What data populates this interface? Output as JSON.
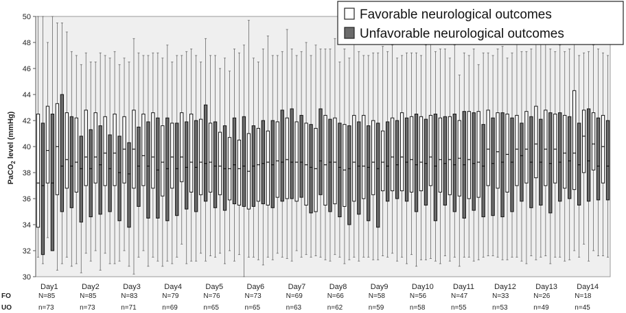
{
  "chart_data": {
    "type": "boxplot",
    "ylabel_main": "PaCO",
    "ylabel_sub": "2",
    "ylabel_tail": " level (mmHg)",
    "ylim": [
      30,
      50
    ],
    "yticks": [
      30,
      32,
      34,
      36,
      38,
      40,
      42,
      44,
      46,
      48,
      50
    ],
    "grid": false,
    "legend_position": "top-right",
    "legend": [
      {
        "name": "Favorable neurological outcomes",
        "color": "#ffffff"
      },
      {
        "name": "Unfavorable neurological outcomes",
        "color": "#6b6b6b"
      }
    ],
    "categories": [
      "Day1",
      "Day2",
      "Day3",
      "Day4",
      "Day5",
      "Day6",
      "Day7",
      "Day8",
      "Day9",
      "Day10",
      "Day11",
      "Day12",
      "Day13",
      "Day14"
    ],
    "row_labels": {
      "fo": "FO",
      "uo": "UO"
    },
    "fo_counts": [
      "N=85",
      "N=85",
      "N=83",
      "N=79",
      "N=76",
      "N=73",
      "N=69",
      "N=66",
      "N=58",
      "N=56",
      "N=47",
      "N=33",
      "N=26",
      "N=18"
    ],
    "uo_counts": [
      "n=73",
      "n=73",
      "n=71",
      "n=69",
      "n=65",
      "n=65",
      "n=63",
      "n=62",
      "n=59",
      "n=58",
      "n=55",
      "n=53",
      "n=49",
      "n=45"
    ],
    "series": [
      {
        "name": "Favorable neurological outcomes",
        "color": "#ffffff",
        "boxes": [
          [
            31.5,
            33.8,
            37.2,
            42.5,
            50
          ],
          [
            33,
            37.2,
            39.7,
            43.1,
            48
          ],
          [
            30.5,
            36.3,
            40,
            43.3,
            49.5
          ],
          [
            31.5,
            36.8,
            39,
            42.6,
            48.8
          ],
          [
            31,
            36.5,
            38.8,
            42.2,
            47
          ],
          [
            31.8,
            37,
            39.2,
            42.8,
            47.2
          ],
          [
            32,
            37.2,
            39.2,
            42.6,
            46.5
          ],
          [
            31.8,
            37,
            39.5,
            42.3,
            47
          ],
          [
            31,
            37,
            39.5,
            42.5,
            47.3
          ],
          [
            32,
            37.2,
            39.8,
            42.3,
            46.8
          ],
          [
            30.2,
            36.8,
            39.8,
            42.8,
            48.3
          ],
          [
            32,
            37,
            39.3,
            42.5,
            47
          ],
          [
            31.5,
            36.8,
            39.2,
            42.6,
            47.2
          ],
          [
            30.8,
            36.2,
            38.8,
            41.6,
            46.8
          ],
          [
            31,
            36.8,
            39.2,
            41.8,
            46.5
          ],
          [
            32.5,
            37.3,
            39.2,
            42.6,
            47
          ],
          [
            31.2,
            36.5,
            38.8,
            42.5,
            47.5
          ],
          [
            31.8,
            36.3,
            38.8,
            42.1,
            46.5
          ],
          [
            31.6,
            36.5,
            38.8,
            41.8,
            47
          ],
          [
            31.8,
            36.3,
            38.5,
            41.1,
            46
          ],
          [
            32,
            35.9,
            38.3,
            40.7,
            45.8
          ],
          [
            31.7,
            35.5,
            38.3,
            40.5,
            47.2
          ],
          [
            31.5,
            35.2,
            38.1,
            41,
            49.7
          ],
          [
            31.3,
            35.8,
            38.6,
            41.4,
            46.5
          ],
          [
            31.5,
            35.5,
            38.8,
            41.2,
            48.5
          ],
          [
            31.8,
            36.1,
            38.9,
            41.9,
            47
          ],
          [
            31.4,
            36,
            39,
            42.2,
            49
          ],
          [
            32,
            35.8,
            38.8,
            41.9,
            47
          ],
          [
            31.7,
            35.5,
            38.6,
            41.8,
            48
          ],
          [
            31.6,
            35,
            38.3,
            41.4,
            47.8
          ],
          [
            31.3,
            35.5,
            38.6,
            42.4,
            47.5
          ],
          [
            31.7,
            35.6,
            38.8,
            42.2,
            48.3
          ],
          [
            31,
            35.4,
            38.2,
            41.7,
            47.5
          ],
          [
            31.5,
            35.8,
            38.8,
            42.4,
            48
          ],
          [
            31.5,
            36,
            38.5,
            42.4,
            47
          ],
          [
            31.3,
            36.3,
            38.8,
            42,
            47.2
          ],
          [
            31.6,
            36.6,
            38.8,
            41.2,
            47.7
          ],
          [
            31.8,
            36.6,
            39.2,
            42.2,
            47.8
          ],
          [
            31.5,
            36.6,
            39.2,
            42.6,
            47
          ],
          [
            31.7,
            36.5,
            39,
            42.3,
            47.2
          ],
          [
            31.3,
            36.6,
            38.8,
            42.3,
            47
          ],
          [
            31.4,
            37,
            39.2,
            42.4,
            48.5
          ],
          [
            31,
            36.5,
            39,
            42.2,
            47.5
          ],
          [
            31.2,
            36.3,
            39,
            42.3,
            46.8
          ],
          [
            30.8,
            36.2,
            39.1,
            42,
            45.5
          ],
          [
            31.5,
            36,
            39,
            42.7,
            47
          ],
          [
            31.3,
            36.1,
            38.8,
            42.7,
            46.3
          ],
          [
            31.6,
            37,
            39.8,
            42.8,
            47.2
          ],
          [
            31.5,
            36.8,
            39.6,
            42.6,
            47.5
          ],
          [
            31.3,
            36.5,
            39.4,
            42.5,
            46.8
          ],
          [
            31.5,
            37,
            39.8,
            42.4,
            48
          ],
          [
            31,
            37.2,
            39.8,
            42.7,
            47.3
          ],
          [
            31.3,
            37.6,
            40.2,
            43.1,
            48.2
          ],
          [
            31.6,
            37,
            39.8,
            42.8,
            48.2
          ],
          [
            31.5,
            37.2,
            39.8,
            42.5,
            47.3
          ],
          [
            31.2,
            36.8,
            39.5,
            42.4,
            47.3
          ],
          [
            32,
            36.7,
            39.5,
            44.3,
            49
          ],
          [
            32.5,
            38,
            40.8,
            42.8,
            47.2
          ],
          [
            32,
            38.2,
            40.2,
            42.6,
            47.8
          ],
          [
            31.6,
            37.2,
            40,
            42.4,
            47.2
          ],
          [
            32.2,
            37.7,
            40.3,
            42.8,
            46.8
          ]
        ]
      },
      {
        "name": "Unfavorable neurological outcomes",
        "color": "#6b6b6b",
        "boxes": [
          [
            31,
            31.7,
            37,
            41.8,
            50
          ],
          [
            32,
            32,
            37.2,
            42.5,
            50
          ],
          [
            31,
            35,
            38.5,
            44,
            49.5
          ],
          [
            30.8,
            35.3,
            38.5,
            42.3,
            47.3
          ],
          [
            30.3,
            34.2,
            38.3,
            40.8,
            46.3
          ],
          [
            31.2,
            34.6,
            38.3,
            41.3,
            46.5
          ],
          [
            30.5,
            34.8,
            38.6,
            41.6,
            47.2
          ],
          [
            31,
            35,
            38.3,
            40.9,
            46.8
          ],
          [
            31.2,
            34.3,
            38,
            40.8,
            46.3
          ],
          [
            30.8,
            33.8,
            37.9,
            40.3,
            46.5
          ],
          [
            31.5,
            35.4,
            38.5,
            41.5,
            47.2
          ],
          [
            30.8,
            34.5,
            38.5,
            41.9,
            47
          ],
          [
            31.2,
            34.5,
            38.2,
            42.2,
            47.2
          ],
          [
            31.2,
            34.3,
            38.3,
            42.2,
            47.8
          ],
          [
            31.5,
            34.7,
            38.3,
            41.8,
            47
          ],
          [
            31,
            35.2,
            38.4,
            41.9,
            47.3
          ],
          [
            31.2,
            35,
            38.4,
            42,
            47
          ],
          [
            31.2,
            35.8,
            38.7,
            43.2,
            48.3
          ],
          [
            31.5,
            35.3,
            38.5,
            41.9,
            47
          ],
          [
            31,
            35.1,
            38.3,
            41.6,
            46.8
          ],
          [
            31.2,
            35.6,
            38.6,
            42.2,
            47.5
          ],
          [
            30,
            35.4,
            38.5,
            42.3,
            47.8
          ],
          [
            31.5,
            35.4,
            38.5,
            41.6,
            46.8
          ],
          [
            30.9,
            35.6,
            38.7,
            42,
            47.5
          ],
          [
            31.3,
            35.3,
            38.6,
            42,
            47
          ],
          [
            31.5,
            35.8,
            38.8,
            42.8,
            47.3
          ],
          [
            31.2,
            36,
            38.8,
            42.9,
            47.5
          ],
          [
            31.5,
            36.1,
            38.8,
            42.4,
            47.3
          ],
          [
            31.5,
            34.9,
            38.4,
            41.7,
            47
          ],
          [
            31.5,
            36.3,
            38.9,
            42.9,
            47.5
          ],
          [
            31.2,
            35,
            38.8,
            42.1,
            47.5
          ],
          [
            31.5,
            34.6,
            38.4,
            41.8,
            46.5
          ],
          [
            31.3,
            34,
            38.3,
            41.6,
            46.8
          ],
          [
            31.2,
            34.8,
            38.5,
            41.9,
            47.3
          ],
          [
            31.5,
            34.3,
            38.4,
            41.6,
            47
          ],
          [
            31.3,
            33.8,
            38.3,
            41.8,
            47.2
          ],
          [
            31.5,
            35.8,
            38.5,
            41.9,
            47.3
          ],
          [
            31.2,
            36,
            38.6,
            42,
            46.8
          ],
          [
            31,
            35.8,
            38.8,
            42.2,
            47.2
          ],
          [
            30.8,
            35,
            38.6,
            42.5,
            47.2
          ],
          [
            31.3,
            35.5,
            38.7,
            42.1,
            47.8
          ],
          [
            31.2,
            34.3,
            38.5,
            42.5,
            47.3
          ],
          [
            31.6,
            35.5,
            38.7,
            42.3,
            47.5
          ],
          [
            31.5,
            35,
            38.6,
            42.5,
            47.8
          ],
          [
            31.5,
            34.5,
            38.6,
            42.7,
            47.2
          ],
          [
            31.2,
            35.1,
            38.7,
            42.6,
            47.5
          ],
          [
            31.5,
            34.6,
            38.5,
            41.7,
            47.2
          ],
          [
            31.6,
            34.7,
            38.7,
            42.2,
            47
          ],
          [
            31.3,
            34.6,
            38.8,
            42.6,
            47.7
          ],
          [
            31.5,
            35,
            38.8,
            42.2,
            47.2
          ],
          [
            31.2,
            35.8,
            39.3,
            41.8,
            47.3
          ],
          [
            31.6,
            35.3,
            38.8,
            42.3,
            47.5
          ],
          [
            31.5,
            35.5,
            38.8,
            42.1,
            48
          ],
          [
            31,
            34.9,
            38.7,
            42.6,
            47.5
          ],
          [
            31.5,
            35.8,
            38.8,
            42.6,
            47.8
          ],
          [
            31.3,
            36,
            38.9,
            42.3,
            47.5
          ],
          [
            31.5,
            35.5,
            38.6,
            41.8,
            47
          ],
          [
            31.2,
            35.8,
            38.9,
            42.9,
            47.3
          ],
          [
            31.6,
            35.9,
            38.5,
            42.2,
            47.5
          ],
          [
            31.5,
            35.9,
            38.5,
            42,
            47
          ]
        ]
      }
    ]
  }
}
